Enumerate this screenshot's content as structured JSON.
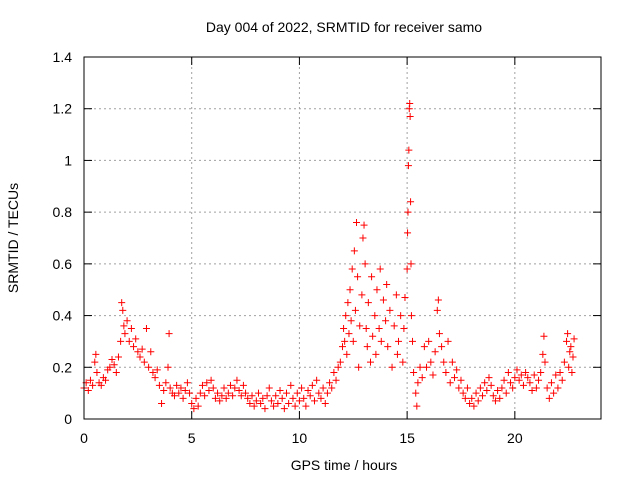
{
  "chart_data": {
    "type": "scatter",
    "title": "Day 004 of 2022, SRMTID for receiver samo",
    "xlabel": "GPS time / hours",
    "ylabel": "SRMTID / TECUs",
    "xlim": [
      0,
      24
    ],
    "ylim": [
      0,
      1.4
    ],
    "xticks": [
      0,
      5,
      10,
      15,
      20
    ],
    "xtick_labels": [
      "0",
      "5",
      "10",
      "15",
      "20"
    ],
    "yticks": [
      0,
      0.2,
      0.4,
      0.6,
      0.8,
      1,
      1.2,
      1.4
    ],
    "ytick_labels": [
      "0",
      "0.2",
      "0.4",
      "0.6",
      "0.8",
      "1",
      "1.2",
      "1.4"
    ],
    "grid": true,
    "marker": "+",
    "color": "#ff0000",
    "series": [
      {
        "name": "SRMTID",
        "points": [
          [
            0.0,
            0.12
          ],
          [
            0.1,
            0.14
          ],
          [
            0.2,
            0.11
          ],
          [
            0.3,
            0.15
          ],
          [
            0.4,
            0.13
          ],
          [
            0.5,
            0.22
          ],
          [
            0.55,
            0.25
          ],
          [
            0.6,
            0.18
          ],
          [
            0.7,
            0.14
          ],
          [
            0.8,
            0.13
          ],
          [
            0.9,
            0.16
          ],
          [
            1.0,
            0.15
          ],
          [
            1.1,
            0.19
          ],
          [
            1.2,
            0.2
          ],
          [
            1.3,
            0.23
          ],
          [
            1.4,
            0.21
          ],
          [
            1.5,
            0.18
          ],
          [
            1.6,
            0.24
          ],
          [
            1.7,
            0.3
          ],
          [
            1.75,
            0.45
          ],
          [
            1.8,
            0.42
          ],
          [
            1.85,
            0.36
          ],
          [
            1.9,
            0.33
          ],
          [
            2.0,
            0.38
          ],
          [
            2.1,
            0.3
          ],
          [
            2.2,
            0.35
          ],
          [
            2.3,
            0.28
          ],
          [
            2.4,
            0.31
          ],
          [
            2.5,
            0.26
          ],
          [
            2.6,
            0.24
          ],
          [
            2.7,
            0.27
          ],
          [
            2.8,
            0.22
          ],
          [
            2.9,
            0.35
          ],
          [
            3.0,
            0.2
          ],
          [
            3.1,
            0.26
          ],
          [
            3.2,
            0.18
          ],
          [
            3.3,
            0.16
          ],
          [
            3.4,
            0.19
          ],
          [
            3.5,
            0.13
          ],
          [
            3.6,
            0.06
          ],
          [
            3.7,
            0.11
          ],
          [
            3.8,
            0.14
          ],
          [
            3.9,
            0.2
          ],
          [
            3.95,
            0.33
          ],
          [
            4.0,
            0.12
          ],
          [
            4.1,
            0.1
          ],
          [
            4.2,
            0.09
          ],
          [
            4.3,
            0.13
          ],
          [
            4.4,
            0.1
          ],
          [
            4.5,
            0.12
          ],
          [
            4.6,
            0.08
          ],
          [
            4.7,
            0.11
          ],
          [
            4.8,
            0.14
          ],
          [
            4.9,
            0.1
          ],
          [
            5.0,
            0.06
          ],
          [
            5.1,
            0.04
          ],
          [
            5.2,
            0.08
          ],
          [
            5.3,
            0.05
          ],
          [
            5.4,
            0.1
          ],
          [
            5.5,
            0.13
          ],
          [
            5.6,
            0.09
          ],
          [
            5.7,
            0.14
          ],
          [
            5.8,
            0.11
          ],
          [
            5.9,
            0.15
          ],
          [
            6.0,
            0.12
          ],
          [
            6.1,
            0.08
          ],
          [
            6.2,
            0.1
          ],
          [
            6.3,
            0.07
          ],
          [
            6.4,
            0.09
          ],
          [
            6.5,
            0.12
          ],
          [
            6.6,
            0.08
          ],
          [
            6.7,
            0.1
          ],
          [
            6.8,
            0.13
          ],
          [
            6.9,
            0.09
          ],
          [
            7.0,
            0.12
          ],
          [
            7.1,
            0.15
          ],
          [
            7.2,
            0.11
          ],
          [
            7.3,
            0.09
          ],
          [
            7.4,
            0.13
          ],
          [
            7.5,
            0.1
          ],
          [
            7.6,
            0.08
          ],
          [
            7.7,
            0.06
          ],
          [
            7.8,
            0.09
          ],
          [
            7.9,
            0.05
          ],
          [
            8.0,
            0.07
          ],
          [
            8.1,
            0.1
          ],
          [
            8.2,
            0.06
          ],
          [
            8.3,
            0.08
          ],
          [
            8.4,
            0.04
          ],
          [
            8.5,
            0.09
          ],
          [
            8.6,
            0.12
          ],
          [
            8.7,
            0.07
          ],
          [
            8.8,
            0.05
          ],
          [
            8.9,
            0.09
          ],
          [
            9.0,
            0.06
          ],
          [
            9.1,
            0.11
          ],
          [
            9.2,
            0.08
          ],
          [
            9.3,
            0.04
          ],
          [
            9.4,
            0.1
          ],
          [
            9.5,
            0.06
          ],
          [
            9.6,
            0.13
          ],
          [
            9.7,
            0.08
          ],
          [
            9.8,
            0.05
          ],
          [
            9.9,
            0.1
          ],
          [
            10.0,
            0.07
          ],
          [
            10.1,
            0.12
          ],
          [
            10.2,
            0.08
          ],
          [
            10.3,
            0.05
          ],
          [
            10.4,
            0.11
          ],
          [
            10.5,
            0.09
          ],
          [
            10.6,
            0.13
          ],
          [
            10.7,
            0.07
          ],
          [
            10.8,
            0.15
          ],
          [
            10.9,
            0.1
          ],
          [
            11.0,
            0.08
          ],
          [
            11.1,
            0.12
          ],
          [
            11.2,
            0.06
          ],
          [
            11.3,
            0.1
          ],
          [
            11.4,
            0.14
          ],
          [
            11.5,
            0.12
          ],
          [
            11.6,
            0.18
          ],
          [
            11.7,
            0.15
          ],
          [
            11.8,
            0.2
          ],
          [
            11.9,
            0.22
          ],
          [
            12.0,
            0.28
          ],
          [
            12.05,
            0.35
          ],
          [
            12.1,
            0.3
          ],
          [
            12.15,
            0.4
          ],
          [
            12.2,
            0.25
          ],
          [
            12.25,
            0.45
          ],
          [
            12.3,
            0.33
          ],
          [
            12.35,
            0.5
          ],
          [
            12.4,
            0.38
          ],
          [
            12.45,
            0.58
          ],
          [
            12.5,
            0.3
          ],
          [
            12.55,
            0.65
          ],
          [
            12.6,
            0.42
          ],
          [
            12.65,
            0.76
          ],
          [
            12.7,
            0.55
          ],
          [
            12.75,
            0.2
          ],
          [
            12.8,
            0.36
          ],
          [
            12.9,
            0.48
          ],
          [
            12.95,
            0.7
          ],
          [
            13.0,
            0.75
          ],
          [
            13.05,
            0.6
          ],
          [
            13.1,
            0.35
          ],
          [
            13.15,
            0.28
          ],
          [
            13.2,
            0.45
          ],
          [
            13.3,
            0.22
          ],
          [
            13.35,
            0.55
          ],
          [
            13.4,
            0.32
          ],
          [
            13.5,
            0.4
          ],
          [
            13.55,
            0.25
          ],
          [
            13.6,
            0.5
          ],
          [
            13.7,
            0.35
          ],
          [
            13.75,
            0.58
          ],
          [
            13.8,
            0.3
          ],
          [
            13.9,
            0.46
          ],
          [
            14.0,
            0.38
          ],
          [
            14.05,
            0.52
          ],
          [
            14.1,
            0.28
          ],
          [
            14.2,
            0.42
          ],
          [
            14.3,
            0.2
          ],
          [
            14.4,
            0.36
          ],
          [
            14.5,
            0.48
          ],
          [
            14.55,
            0.25
          ],
          [
            14.6,
            0.3
          ],
          [
            14.7,
            0.4
          ],
          [
            14.8,
            0.22
          ],
          [
            14.85,
            0.35
          ],
          [
            14.9,
            0.47
          ],
          [
            15.0,
            0.58
          ],
          [
            15.02,
            0.72
          ],
          [
            15.04,
            0.8
          ],
          [
            15.06,
            0.98
          ],
          [
            15.08,
            1.04
          ],
          [
            15.1,
            1.2
          ],
          [
            15.12,
            1.22
          ],
          [
            15.14,
            1.17
          ],
          [
            15.16,
            0.84
          ],
          [
            15.18,
            0.6
          ],
          [
            15.2,
            0.4
          ],
          [
            15.25,
            0.3
          ],
          [
            15.3,
            0.18
          ],
          [
            15.4,
            0.1
          ],
          [
            15.45,
            0.05
          ],
          [
            15.5,
            0.14
          ],
          [
            15.6,
            0.2
          ],
          [
            15.7,
            0.16
          ],
          [
            15.8,
            0.28
          ],
          [
            15.9,
            0.2
          ],
          [
            16.0,
            0.3
          ],
          [
            16.1,
            0.22
          ],
          [
            16.2,
            0.17
          ],
          [
            16.3,
            0.26
          ],
          [
            16.4,
            0.42
          ],
          [
            16.45,
            0.46
          ],
          [
            16.5,
            0.33
          ],
          [
            16.6,
            0.28
          ],
          [
            16.7,
            0.22
          ],
          [
            16.8,
            0.18
          ],
          [
            16.9,
            0.3
          ],
          [
            17.0,
            0.14
          ],
          [
            17.1,
            0.22
          ],
          [
            17.2,
            0.16
          ],
          [
            17.3,
            0.19
          ],
          [
            17.4,
            0.12
          ],
          [
            17.5,
            0.15
          ],
          [
            17.6,
            0.1
          ],
          [
            17.7,
            0.08
          ],
          [
            17.8,
            0.12
          ],
          [
            17.9,
            0.06
          ],
          [
            18.0,
            0.08
          ],
          [
            18.1,
            0.05
          ],
          [
            18.2,
            0.1
          ],
          [
            18.3,
            0.07
          ],
          [
            18.4,
            0.12
          ],
          [
            18.5,
            0.09
          ],
          [
            18.6,
            0.14
          ],
          [
            18.7,
            0.11
          ],
          [
            18.8,
            0.16
          ],
          [
            18.9,
            0.13
          ],
          [
            19.0,
            0.09
          ],
          [
            19.1,
            0.07
          ],
          [
            19.2,
            0.11
          ],
          [
            19.3,
            0.08
          ],
          [
            19.4,
            0.12
          ],
          [
            19.5,
            0.15
          ],
          [
            19.6,
            0.1
          ],
          [
            19.7,
            0.18
          ],
          [
            19.8,
            0.14
          ],
          [
            19.9,
            0.12
          ],
          [
            20.0,
            0.16
          ],
          [
            20.1,
            0.19
          ],
          [
            20.2,
            0.15
          ],
          [
            20.3,
            0.17
          ],
          [
            20.4,
            0.13
          ],
          [
            20.5,
            0.18
          ],
          [
            20.6,
            0.16
          ],
          [
            20.7,
            0.14
          ],
          [
            20.8,
            0.11
          ],
          [
            20.9,
            0.17
          ],
          [
            21.0,
            0.12
          ],
          [
            21.1,
            0.15
          ],
          [
            21.2,
            0.18
          ],
          [
            21.3,
            0.25
          ],
          [
            21.35,
            0.32
          ],
          [
            21.4,
            0.22
          ],
          [
            21.5,
            0.12
          ],
          [
            21.6,
            0.08
          ],
          [
            21.7,
            0.14
          ],
          [
            21.8,
            0.1
          ],
          [
            21.9,
            0.17
          ],
          [
            22.0,
            0.12
          ],
          [
            22.1,
            0.18
          ],
          [
            22.2,
            0.15
          ],
          [
            22.3,
            0.22
          ],
          [
            22.4,
            0.3
          ],
          [
            22.45,
            0.33
          ],
          [
            22.5,
            0.2
          ],
          [
            22.55,
            0.26
          ],
          [
            22.6,
            0.28
          ],
          [
            22.65,
            0.18
          ],
          [
            22.7,
            0.24
          ],
          [
            22.75,
            0.31
          ]
        ]
      }
    ]
  }
}
